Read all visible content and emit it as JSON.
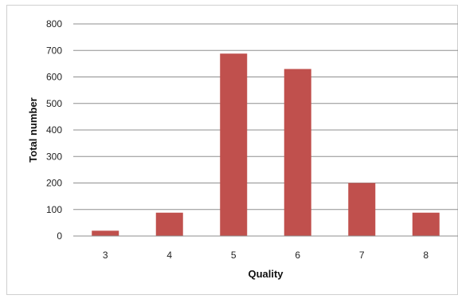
{
  "chart_data": {
    "type": "bar",
    "title": "",
    "xlabel": "Quality",
    "ylabel": "Total number",
    "categories": [
      "3",
      "4",
      "5",
      "6",
      "7",
      "8"
    ],
    "values": [
      20,
      88,
      688,
      630,
      200,
      88
    ],
    "ylim": [
      0,
      800
    ],
    "yticks": [
      0,
      100,
      200,
      300,
      400,
      500,
      600,
      700,
      800
    ],
    "grid": "horizontal",
    "legend": "none",
    "bar_color": "#c0504d",
    "grid_color": "#8f8f8f"
  }
}
